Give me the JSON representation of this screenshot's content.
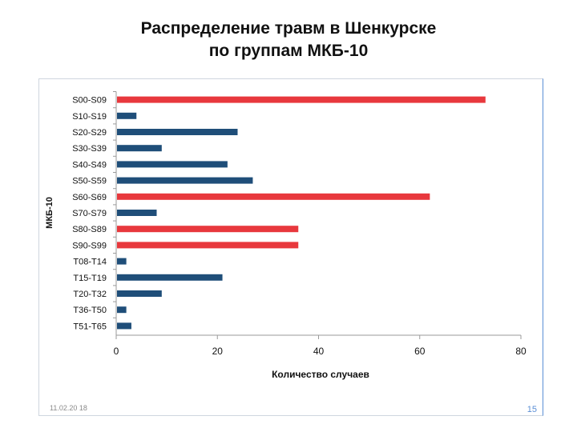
{
  "slide": {
    "title_line1": "Распределение травм в Шенкурске",
    "title_line2": "по группам МКБ-10",
    "date": "11.02.20 18",
    "page": "15"
  },
  "chart_data": {
    "type": "bar",
    "orientation": "horizontal",
    "title": "",
    "xlabel": "Количество случаев",
    "ylabel": "МКБ-10",
    "xlim": [
      0,
      80
    ],
    "xticks": [
      0,
      20,
      40,
      60,
      80
    ],
    "grid": false,
    "legend": "none",
    "categories": [
      "S00-S09",
      "S10-S19",
      "S20-S29",
      "S30-S39",
      "S40-S49",
      "S50-S59",
      "S60-S69",
      "S70-S79",
      "S80-S89",
      "S90-S99",
      "T08-T14",
      "T15-T19",
      "T20-T32",
      "T36-T50",
      "T51-T65"
    ],
    "values": [
      73,
      4,
      24,
      9,
      22,
      27,
      62,
      8,
      36,
      36,
      2,
      21,
      9,
      2,
      3
    ],
    "highlighted": [
      "S00-S09",
      "S60-S69",
      "S80-S89",
      "S90-S99"
    ],
    "colors": {
      "default": "#1f4e79",
      "highlight": "#e8383d",
      "axis": "#9a9a9a"
    }
  }
}
